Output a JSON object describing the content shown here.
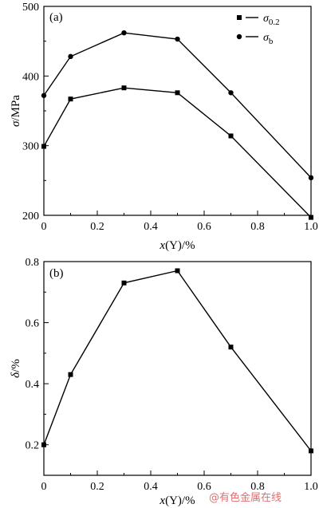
{
  "chart_data": [
    {
      "type": "line",
      "panel_label": "(a)",
      "xlabel": "x(Y)/%",
      "ylabel": "σ/MPa",
      "xlim": [
        0,
        1.0
      ],
      "ylim": [
        200,
        500
      ],
      "x_ticks": [
        "0",
        "0.2",
        "0.4",
        "0.6",
        "0.8",
        "1.0"
      ],
      "y_ticks": [
        "200",
        "300",
        "400",
        "500"
      ],
      "legend_position": "top-right",
      "series": [
        {
          "name": "σ0.2",
          "marker": "square",
          "x": [
            0,
            0.1,
            0.3,
            0.5,
            0.7,
            1.0
          ],
          "values": [
            299,
            367,
            383,
            376,
            314,
            197
          ]
        },
        {
          "name": "σb",
          "marker": "circle",
          "x": [
            0,
            0.1,
            0.3,
            0.5,
            0.7,
            1.0
          ],
          "values": [
            372,
            428,
            462,
            453,
            376,
            254
          ]
        }
      ]
    },
    {
      "type": "line",
      "panel_label": "(b)",
      "xlabel": "x(Y)/%",
      "ylabel": "δ/%",
      "xlim": [
        0,
        1.0
      ],
      "ylim": [
        0.1,
        0.8
      ],
      "x_ticks": [
        "0",
        "0.2",
        "0.4",
        "0.6",
        "0.8",
        "1.0"
      ],
      "y_ticks": [
        "0.2",
        "0.4",
        "0.6",
        "0.8"
      ],
      "series": [
        {
          "marker": "square",
          "x": [
            0,
            0.1,
            0.3,
            0.5,
            0.7,
            1.0
          ],
          "values": [
            0.2,
            0.43,
            0.73,
            0.77,
            0.52,
            0.18
          ]
        }
      ]
    }
  ],
  "watermark": "@有色金属在线"
}
